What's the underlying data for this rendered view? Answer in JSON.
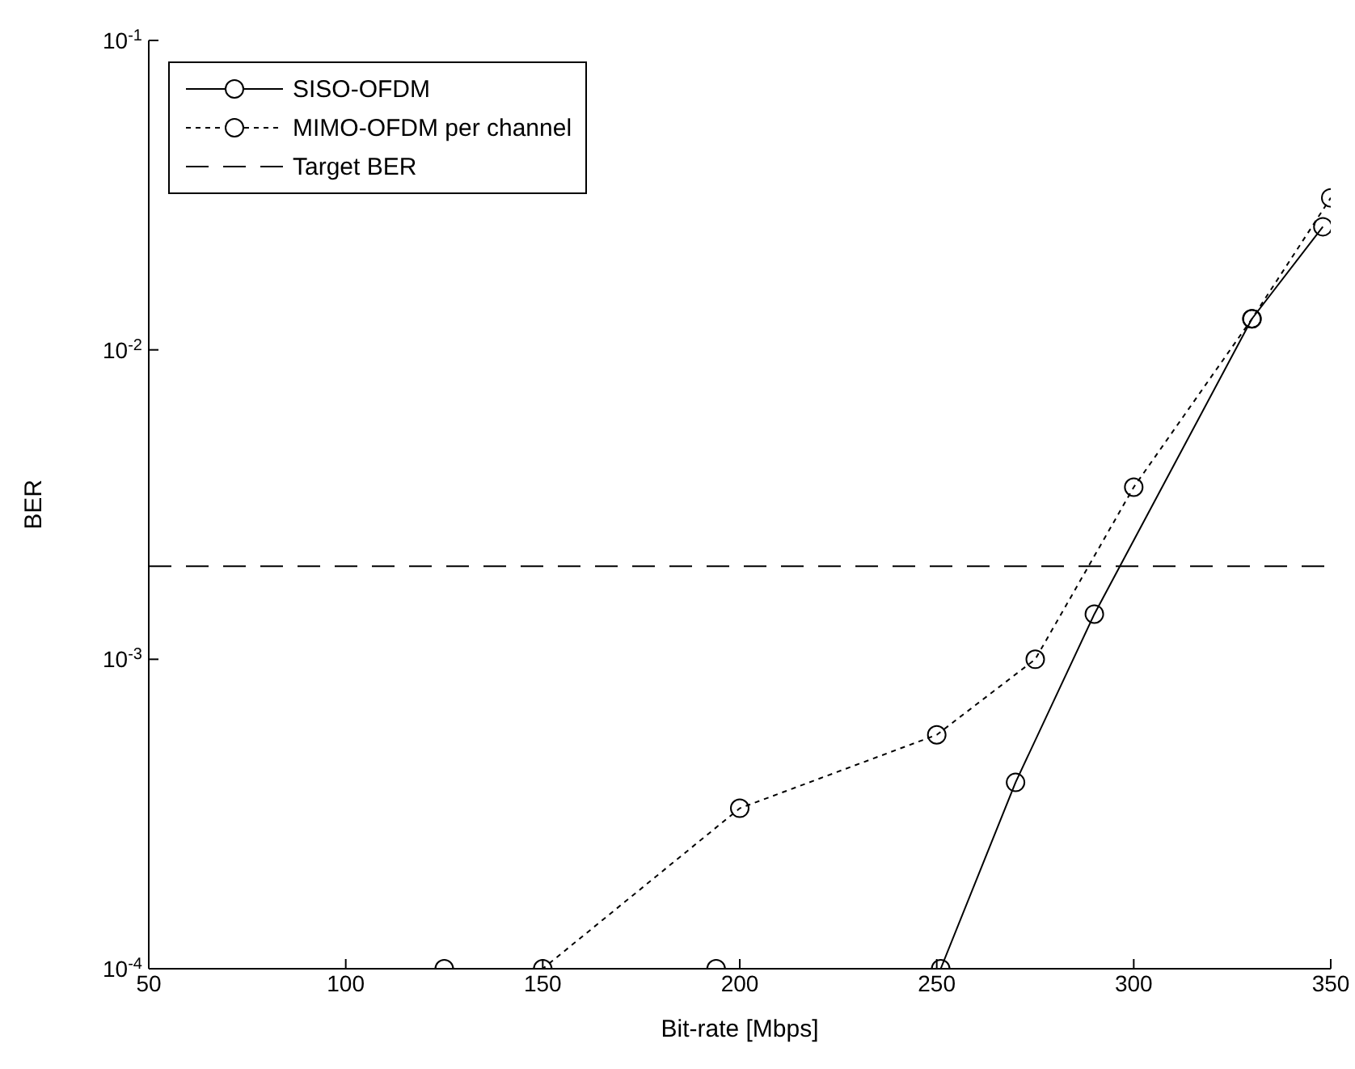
{
  "chart_data": {
    "type": "line",
    "xlabel": "Bit-rate [Mbps]",
    "ylabel": "BER",
    "log": "y",
    "xlim": [
      50,
      350
    ],
    "xticks": [
      50,
      100,
      150,
      200,
      250,
      300,
      350
    ],
    "ylim": [
      0.0001,
      0.1
    ],
    "yticks": [
      {
        "value": 0.0001,
        "label": "10$^{-4}$"
      },
      {
        "value": 0.001,
        "label": "10$^{-3}$"
      },
      {
        "value": 0.01,
        "label": "10$^{-2}$"
      },
      {
        "value": 0.1,
        "label": "10$^{-1}$"
      }
    ],
    "legend": "top left",
    "marker": "circle",
    "series": [
      {
        "name": "SISO-OFDM",
        "color": "#000000",
        "line_style": "solid",
        "x": [
          194,
          251,
          270,
          290,
          330,
          348
        ],
        "values": [
          0.0001,
          0.0001,
          0.0004,
          0.0014,
          0.0126,
          0.025
        ]
      },
      {
        "name": "MIMO-OFDM per channel",
        "color": "#000000",
        "line_style": "dotted",
        "x": [
          125,
          150,
          200,
          250,
          275,
          300,
          330,
          350
        ],
        "values": [
          0.0001,
          0.0001,
          0.00033,
          0.00057,
          0.001,
          0.0036,
          0.0126,
          0.031
        ]
      }
    ],
    "ref_lines": [
      {
        "axis": "y",
        "value": 0.002,
        "label": "Target BER",
        "color": "#000000",
        "line_style": "dashed"
      }
    ]
  }
}
